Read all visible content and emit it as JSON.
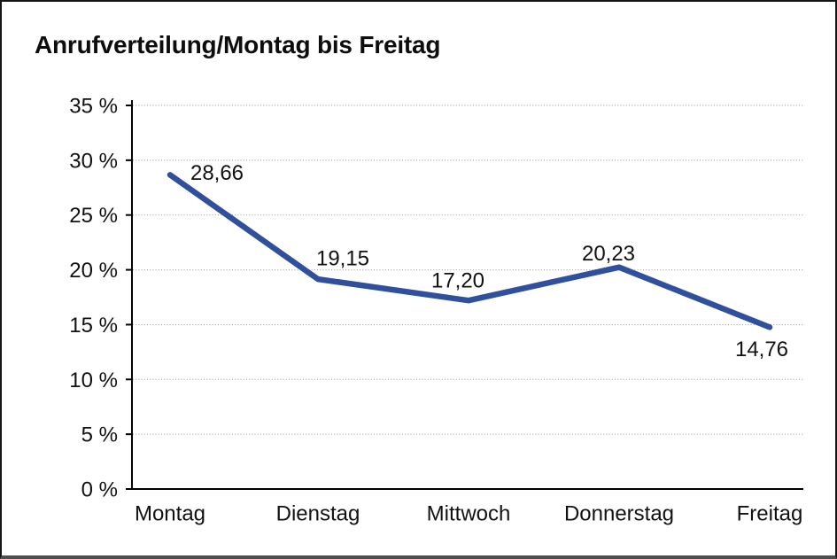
{
  "chart_data": {
    "type": "line",
    "title": "Anrufverteilung/Montag bis Freitag",
    "categories": [
      "Montag",
      "Dienstag",
      "Mittwoch",
      "Donnerstag",
      "Freitag"
    ],
    "series": [
      {
        "name": "Anrufverteilung",
        "values": [
          28.66,
          19.15,
          17.2,
          20.23,
          14.76
        ]
      }
    ],
    "value_labels": [
      "28,66",
      "19,15",
      "17,20",
      "20,23",
      "14,76"
    ],
    "y_ticks": [
      "35 %",
      "30 %",
      "25 %",
      "20 %",
      "15 %",
      "10 %",
      "5 %",
      "0 %"
    ],
    "ylim": [
      0,
      35
    ],
    "y_tick_step": 5,
    "xlabel": "",
    "ylabel": "",
    "legend_position": "none",
    "grid": "horizontal-dotted",
    "line_color": "#30509e",
    "grid_color": "#999999",
    "axis_color": "#000000",
    "text_color": "#111111"
  }
}
